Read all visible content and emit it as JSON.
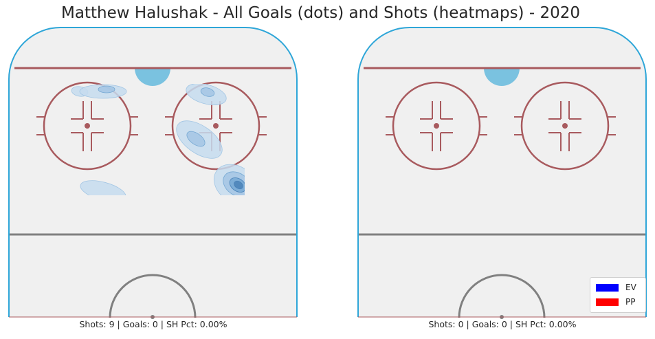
{
  "title": "Matthew Halushak - All Goals (dots) and Shots (heatmaps) - 2020",
  "colors": {
    "ice": "#f0f0f0",
    "boards": "#2ea6d8",
    "goal_line": "#a85a5e",
    "faceoff": "#a85a5e",
    "blue_line": "#808080",
    "crease": "#7ac2e0",
    "heat": [
      "#c6dcef",
      "#a3c6e4",
      "#75a8d3",
      "#4a82b8"
    ],
    "ev": "#0000ff",
    "pp": "#ff0000"
  },
  "chart_data": [
    {
      "type": "heatmap",
      "panel": "left",
      "caption": "Shots: 9 | Goals: 0 | SH Pct: 0.00%",
      "shots": 9,
      "goals": 0,
      "sh_pct": "0.00%",
      "goal_dots": [],
      "heat_spots": [
        {
          "x": 116,
          "y": 133,
          "rx": 12,
          "ry": 7,
          "angle": 10,
          "level": 0
        },
        {
          "x": 150,
          "y": 133,
          "rx": 34,
          "ry": 10,
          "angle": 0,
          "level": 0
        },
        {
          "x": 155,
          "y": 130,
          "rx": 12,
          "ry": 5,
          "angle": 0,
          "level": 1
        },
        {
          "x": 300,
          "y": 137,
          "rx": 30,
          "ry": 14,
          "angle": 15,
          "level": 0
        },
        {
          "x": 302,
          "y": 134,
          "rx": 10,
          "ry": 6,
          "angle": 15,
          "level": 1
        },
        {
          "x": 290,
          "y": 203,
          "rx": 38,
          "ry": 20,
          "angle": 35,
          "level": 0
        },
        {
          "x": 285,
          "y": 202,
          "rx": 15,
          "ry": 8,
          "angle": 35,
          "level": 1
        },
        {
          "x": 150,
          "y": 278,
          "rx": 34,
          "ry": 13,
          "angle": 15,
          "level": 0
        },
        {
          "x": 343,
          "y": 268,
          "rx": 34,
          "ry": 26,
          "angle": 35,
          "level": 0
        },
        {
          "x": 345,
          "y": 268,
          "rx": 22,
          "ry": 16,
          "angle": 35,
          "level": 1
        },
        {
          "x": 346,
          "y": 269,
          "rx": 13,
          "ry": 9,
          "angle": 35,
          "level": 2
        },
        {
          "x": 347,
          "y": 269,
          "rx": 7,
          "ry": 5,
          "angle": 35,
          "level": 3
        }
      ]
    },
    {
      "type": "heatmap",
      "panel": "right",
      "caption": "Shots: 0 | Goals: 0 | SH Pct: 0.00%",
      "shots": 0,
      "goals": 0,
      "sh_pct": "0.00%",
      "goal_dots": [],
      "heat_spots": []
    }
  ],
  "legend": {
    "entries": [
      {
        "label": "EV",
        "color": "#0000ff"
      },
      {
        "label": "PP",
        "color": "#ff0000"
      }
    ]
  }
}
